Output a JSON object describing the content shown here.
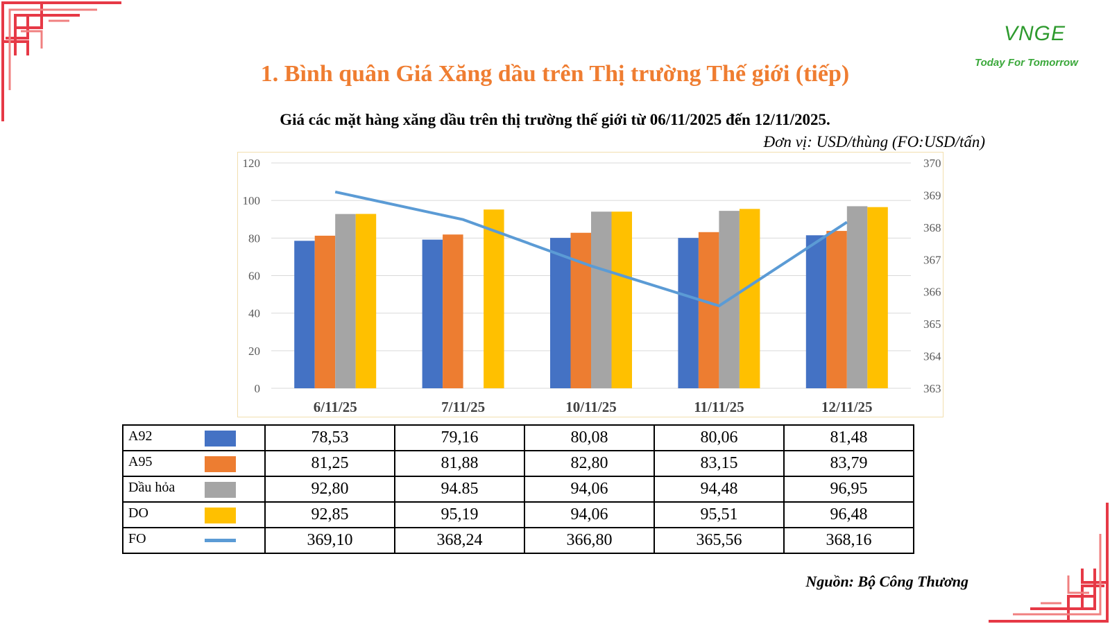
{
  "header": {
    "title": "1. Bình quân Giá Xăng dầu trên Thị trường Thế giới (tiếp)",
    "subtitle": "Giá các mặt hàng xăng dầu trên thị trường thế giới từ 06/11/2025 đến 12/11/2025.",
    "unit_note": "Đơn vị: USD/thùng (FO:USD/tấn)"
  },
  "logo": {
    "mark": "VNGE",
    "tagline": "Today For Tomorrow"
  },
  "footer": {
    "source": "Nguồn: Bộ Công Thương"
  },
  "colors": {
    "title": "#ef7d31",
    "A92": "#4472c4",
    "A95": "#ed7d31",
    "Dau_hoa": "#a5a5a5",
    "DO": "#ffc000",
    "FO": "#5b9bd5",
    "ornament": "#e63946"
  },
  "chart_data": {
    "type": "bar",
    "categories": [
      "6/11/25",
      "7/11/25",
      "10/11/25",
      "11/11/25",
      "12/11/25"
    ],
    "series": [
      {
        "name": "A92",
        "type": "bar",
        "axis": "left",
        "values": [
          78.53,
          79.16,
          80.08,
          80.06,
          81.48
        ],
        "display": [
          "78,53",
          "79,16",
          "80,08",
          "80,06",
          "81,48"
        ]
      },
      {
        "name": "A95",
        "type": "bar",
        "axis": "left",
        "values": [
          81.25,
          81.88,
          82.8,
          83.15,
          83.79
        ],
        "display": [
          "81,25",
          "81,88",
          "82,80",
          "83,15",
          "83,79"
        ]
      },
      {
        "name": "Dầu hỏa",
        "type": "bar",
        "axis": "left",
        "values": [
          92.8,
          null,
          94.06,
          94.48,
          96.95
        ],
        "display": [
          "92,80",
          "94.85",
          "94,06",
          "94,48",
          "96,95"
        ]
      },
      {
        "name": "DO",
        "type": "bar",
        "axis": "left",
        "values": [
          92.85,
          95.19,
          94.06,
          95.51,
          96.48
        ],
        "display": [
          "92,85",
          "95,19",
          "94,06",
          "95,51",
          "96,48"
        ]
      },
      {
        "name": "FO",
        "type": "line",
        "axis": "right",
        "values": [
          369.1,
          368.24,
          366.8,
          365.56,
          368.16
        ],
        "display": [
          "369,10",
          "368,24",
          "366,80",
          "365,56",
          "368,16"
        ]
      }
    ],
    "left_axis": {
      "ylim": [
        0,
        120
      ],
      "ticks": [
        "0",
        "20",
        "40",
        "60",
        "80",
        "100",
        "120"
      ]
    },
    "right_axis": {
      "ylim": [
        363,
        370
      ],
      "ticks": [
        "363",
        "364",
        "365",
        "366",
        "367",
        "368",
        "369",
        "370"
      ]
    },
    "grid": true
  }
}
